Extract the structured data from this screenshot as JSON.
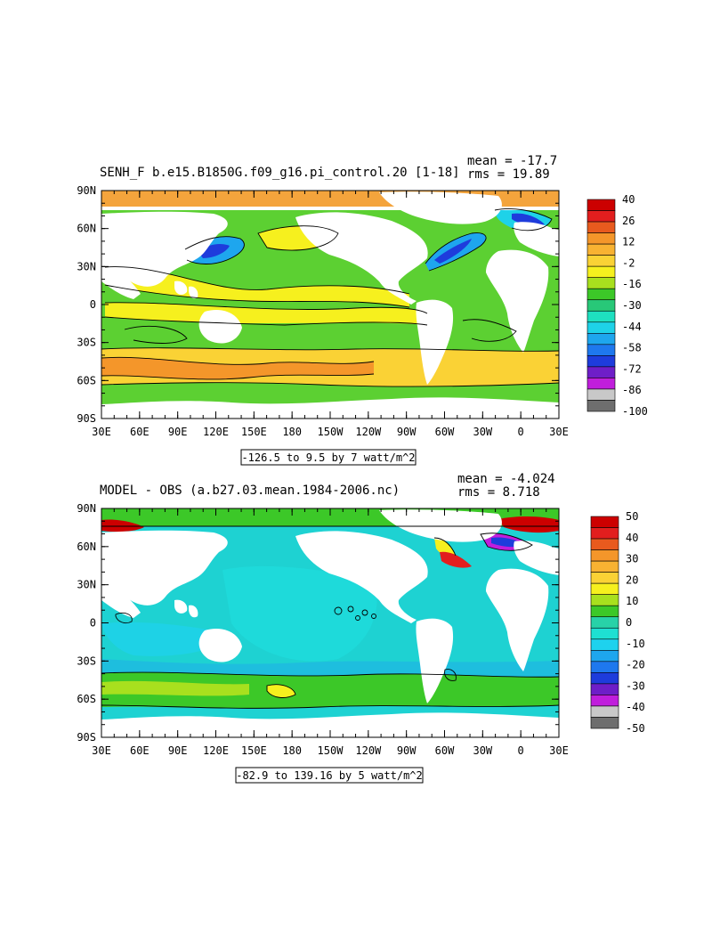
{
  "panels": [
    {
      "title": "SENH_F b.e15.B1850G.f09_g16.pi_control.20 [1-18]",
      "mean": "mean = -17.7",
      "rms": "rms = 19.89",
      "range_label": "-126.5 to 9.5 by 7 watt/m^2",
      "lat_labels": [
        "90N",
        "60N",
        "30N",
        "0",
        "30S",
        "60S",
        "90S"
      ],
      "lon_labels": [
        "30E",
        "60E",
        "90E",
        "120E",
        "150E",
        "180",
        "150W",
        "120W",
        "90W",
        "60W",
        "30W",
        "0",
        "30E"
      ],
      "colorbar": {
        "labels": [
          "40",
          "26",
          "12",
          "-2",
          "-16",
          "-30",
          "-44",
          "-58",
          "-72",
          "-86",
          "-100"
        ],
        "colors": [
          "#cc0000",
          "#e21e1e",
          "#e85a1e",
          "#f4962a",
          "#f8b232",
          "#fad235",
          "#f6f01e",
          "#a8e01e",
          "#3cc828",
          "#28c878",
          "#1ee0c0",
          "#1ed2e8",
          "#1ea6ee",
          "#1e78ee",
          "#1e3cdc",
          "#6e1ec8",
          "#c01edc",
          "#c8c8c8",
          "#6e6e6e"
        ]
      }
    },
    {
      "title": "MODEL - OBS (a.b27.03.mean.1984-2006.nc)",
      "mean": "mean = -4.024",
      "rms": "rms = 8.718",
      "range_label": "-82.9 to 139.16 by 5 watt/m^2",
      "lat_labels": [
        "90N",
        "60N",
        "30N",
        "0",
        "30S",
        "60S",
        "90S"
      ],
      "lon_labels": [
        "30E",
        "60E",
        "90E",
        "120E",
        "150E",
        "180",
        "150W",
        "120W",
        "90W",
        "60W",
        "30W",
        "0",
        "30E"
      ],
      "colorbar": {
        "labels": [
          "50",
          "40",
          "30",
          "20",
          "10",
          "0",
          "-10",
          "-20",
          "-30",
          "-40",
          "-50"
        ],
        "colors": [
          "#cc0000",
          "#e21e1e",
          "#e85a1e",
          "#f4962a",
          "#f8b232",
          "#fad235",
          "#f6f01e",
          "#a8e01e",
          "#3cc828",
          "#28d2a8",
          "#1ee0d2",
          "#1ed2ee",
          "#1ea6ee",
          "#1e78ee",
          "#1e3cdc",
          "#6e1ec8",
          "#c01edc",
          "#c8c8c8",
          "#6e6e6e"
        ]
      }
    }
  ],
  "colors": {
    "land": "#ffffff",
    "sea_ice_panel1": "#f4a43c",
    "sea_ice_panel2": "#3cc828",
    "ocean_base_panel1": "#5cd032",
    "ocean_base_panel2": "#1ed2d2"
  }
}
